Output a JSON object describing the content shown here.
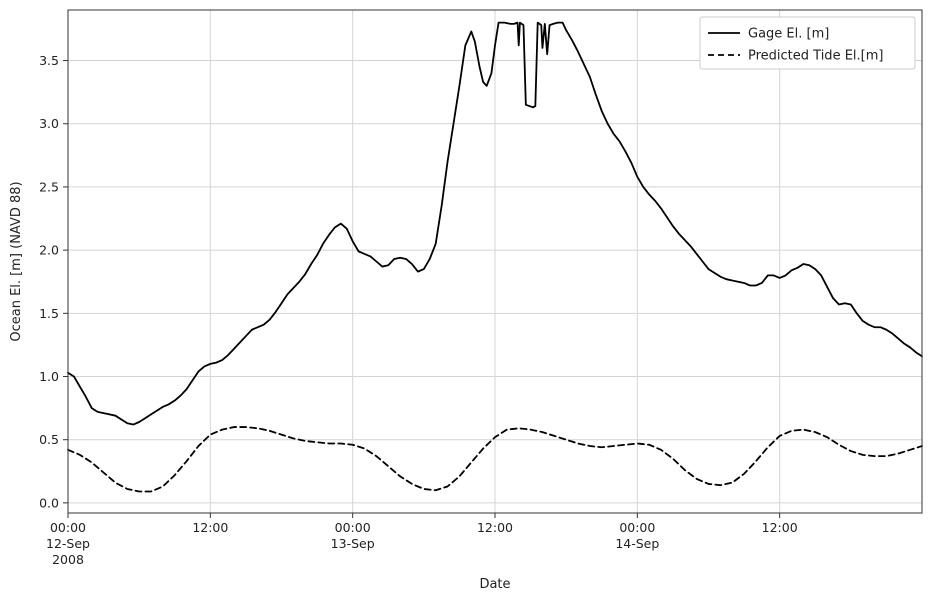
{
  "chart_data": {
    "type": "line",
    "title": "",
    "xlabel": "Date",
    "ylabel": "Ocean El. [m] (NAVD 88)",
    "x_unit": "hours from 2008-09-12 00:00",
    "xlim": [
      0,
      72
    ],
    "ylim": [
      -0.08,
      3.9
    ],
    "grid": true,
    "legend_position": "top-right",
    "x_ticks": [
      {
        "x": 0,
        "line1": "00:00",
        "line2": "12-Sep",
        "line3": "2008"
      },
      {
        "x": 12,
        "line1": "12:00",
        "line2": "",
        "line3": ""
      },
      {
        "x": 24,
        "line1": "00:00",
        "line2": "13-Sep",
        "line3": ""
      },
      {
        "x": 36,
        "line1": "12:00",
        "line2": "",
        "line3": ""
      },
      {
        "x": 48,
        "line1": "00:00",
        "line2": "14-Sep",
        "line3": ""
      },
      {
        "x": 60,
        "line1": "12:00",
        "line2": "",
        "line3": ""
      }
    ],
    "y_ticks": [
      {
        "y": 0.0,
        "label": "0.0"
      },
      {
        "y": 0.5,
        "label": "0.5"
      },
      {
        "y": 1.0,
        "label": "1.0"
      },
      {
        "y": 1.5,
        "label": "1.5"
      },
      {
        "y": 2.0,
        "label": "2.0"
      },
      {
        "y": 2.5,
        "label": "2.5"
      },
      {
        "y": 3.0,
        "label": "3.0"
      },
      {
        "y": 3.5,
        "label": "3.5"
      }
    ],
    "series": [
      {
        "name": "Gage El. [m]",
        "style": "solid",
        "color": "#000000",
        "points": [
          [
            0,
            1.03
          ],
          [
            0.5,
            1.0
          ],
          [
            1,
            0.92
          ],
          [
            1.5,
            0.84
          ],
          [
            2,
            0.75
          ],
          [
            2.5,
            0.72
          ],
          [
            3,
            0.71
          ],
          [
            3.5,
            0.7
          ],
          [
            4,
            0.69
          ],
          [
            4.5,
            0.66
          ],
          [
            5,
            0.63
          ],
          [
            5.5,
            0.62
          ],
          [
            6,
            0.64
          ],
          [
            6.5,
            0.67
          ],
          [
            7,
            0.7
          ],
          [
            7.5,
            0.73
          ],
          [
            8,
            0.76
          ],
          [
            8.5,
            0.78
          ],
          [
            9,
            0.81
          ],
          [
            9.5,
            0.85
          ],
          [
            10,
            0.9
          ],
          [
            10.5,
            0.97
          ],
          [
            11,
            1.04
          ],
          [
            11.5,
            1.08
          ],
          [
            12,
            1.1
          ],
          [
            12.5,
            1.11
          ],
          [
            13,
            1.13
          ],
          [
            13.5,
            1.17
          ],
          [
            14,
            1.22
          ],
          [
            14.5,
            1.27
          ],
          [
            15,
            1.32
          ],
          [
            15.5,
            1.37
          ],
          [
            16,
            1.39
          ],
          [
            16.5,
            1.41
          ],
          [
            17,
            1.45
          ],
          [
            17.5,
            1.51
          ],
          [
            18,
            1.58
          ],
          [
            18.5,
            1.65
          ],
          [
            19,
            1.7
          ],
          [
            19.5,
            1.75
          ],
          [
            20,
            1.81
          ],
          [
            20.5,
            1.89
          ],
          [
            21,
            1.96
          ],
          [
            21.5,
            2.05
          ],
          [
            22,
            2.12
          ],
          [
            22.5,
            2.18
          ],
          [
            23,
            2.21
          ],
          [
            23.5,
            2.17
          ],
          [
            24,
            2.07
          ],
          [
            24.5,
            1.99
          ],
          [
            25,
            1.97
          ],
          [
            25.5,
            1.95
          ],
          [
            26,
            1.91
          ],
          [
            26.5,
            1.87
          ],
          [
            27,
            1.88
          ],
          [
            27.5,
            1.93
          ],
          [
            28,
            1.94
          ],
          [
            28.5,
            1.93
          ],
          [
            29,
            1.89
          ],
          [
            29.5,
            1.83
          ],
          [
            30,
            1.85
          ],
          [
            30.5,
            1.93
          ],
          [
            31,
            2.05
          ],
          [
            31.5,
            2.35
          ],
          [
            32,
            2.7
          ],
          [
            32.5,
            3.0
          ],
          [
            33,
            3.3
          ],
          [
            33.5,
            3.62
          ],
          [
            34,
            3.73
          ],
          [
            34.3,
            3.65
          ],
          [
            34.7,
            3.45
          ],
          [
            35,
            3.33
          ],
          [
            35.3,
            3.3
          ],
          [
            35.7,
            3.4
          ],
          [
            36,
            3.62
          ],
          [
            36.3,
            3.8
          ],
          [
            36.8,
            3.8
          ],
          [
            37.3,
            3.79
          ],
          [
            37.6,
            3.79
          ],
          [
            37.9,
            3.8
          ],
          [
            38.0,
            3.62
          ],
          [
            38.1,
            3.8
          ],
          [
            38.4,
            3.78
          ],
          [
            38.6,
            3.15
          ],
          [
            39.2,
            3.13
          ],
          [
            39.4,
            3.14
          ],
          [
            39.6,
            3.8
          ],
          [
            39.9,
            3.78
          ],
          [
            40.0,
            3.6
          ],
          [
            40.2,
            3.79
          ],
          [
            40.4,
            3.55
          ],
          [
            40.6,
            3.78
          ],
          [
            40.9,
            3.79
          ],
          [
            41.3,
            3.8
          ],
          [
            41.7,
            3.8
          ],
          [
            42,
            3.74
          ],
          [
            42.5,
            3.66
          ],
          [
            43,
            3.57
          ],
          [
            43.5,
            3.47
          ],
          [
            44,
            3.37
          ],
          [
            44.5,
            3.23
          ],
          [
            45,
            3.1
          ],
          [
            45.5,
            3.0
          ],
          [
            46,
            2.92
          ],
          [
            46.5,
            2.86
          ],
          [
            47,
            2.78
          ],
          [
            47.5,
            2.69
          ],
          [
            48,
            2.58
          ],
          [
            48.5,
            2.5
          ],
          [
            49,
            2.44
          ],
          [
            49.5,
            2.39
          ],
          [
            50,
            2.33
          ],
          [
            50.5,
            2.26
          ],
          [
            51,
            2.19
          ],
          [
            51.5,
            2.13
          ],
          [
            52,
            2.08
          ],
          [
            52.5,
            2.03
          ],
          [
            53,
            1.97
          ],
          [
            53.5,
            1.91
          ],
          [
            54,
            1.85
          ],
          [
            54.5,
            1.82
          ],
          [
            55,
            1.79
          ],
          [
            55.5,
            1.77
          ],
          [
            56,
            1.76
          ],
          [
            56.5,
            1.75
          ],
          [
            57,
            1.74
          ],
          [
            57.5,
            1.72
          ],
          [
            58,
            1.72
          ],
          [
            58.5,
            1.74
          ],
          [
            59,
            1.8
          ],
          [
            59.5,
            1.8
          ],
          [
            60,
            1.78
          ],
          [
            60.5,
            1.8
          ],
          [
            61,
            1.84
          ],
          [
            61.5,
            1.86
          ],
          [
            62,
            1.89
          ],
          [
            62.5,
            1.88
          ],
          [
            63,
            1.85
          ],
          [
            63.5,
            1.8
          ],
          [
            64,
            1.71
          ],
          [
            64.5,
            1.62
          ],
          [
            65,
            1.57
          ],
          [
            65.5,
            1.58
          ],
          [
            66,
            1.57
          ],
          [
            66.5,
            1.5
          ],
          [
            67,
            1.44
          ],
          [
            67.5,
            1.41
          ],
          [
            68,
            1.39
          ],
          [
            68.5,
            1.39
          ],
          [
            69,
            1.37
          ],
          [
            69.5,
            1.34
          ],
          [
            70,
            1.3
          ],
          [
            70.5,
            1.26
          ],
          [
            71,
            1.23
          ],
          [
            71.5,
            1.19
          ],
          [
            72,
            1.16
          ]
        ]
      },
      {
        "name": "Predicted Tide El.[m]",
        "style": "dashed",
        "color": "#000000",
        "points": [
          [
            0,
            0.42
          ],
          [
            1,
            0.38
          ],
          [
            2,
            0.32
          ],
          [
            3,
            0.24
          ],
          [
            4,
            0.16
          ],
          [
            5,
            0.11
          ],
          [
            6,
            0.09
          ],
          [
            7,
            0.09
          ],
          [
            8,
            0.13
          ],
          [
            9,
            0.22
          ],
          [
            10,
            0.33
          ],
          [
            11,
            0.45
          ],
          [
            12,
            0.54
          ],
          [
            13,
            0.58
          ],
          [
            14,
            0.6
          ],
          [
            15,
            0.6
          ],
          [
            16,
            0.59
          ],
          [
            17,
            0.57
          ],
          [
            18,
            0.54
          ],
          [
            19,
            0.51
          ],
          [
            20,
            0.49
          ],
          [
            21,
            0.48
          ],
          [
            22,
            0.47
          ],
          [
            23,
            0.47
          ],
          [
            24,
            0.46
          ],
          [
            25,
            0.43
          ],
          [
            26,
            0.37
          ],
          [
            27,
            0.29
          ],
          [
            28,
            0.21
          ],
          [
            29,
            0.15
          ],
          [
            30,
            0.11
          ],
          [
            31,
            0.1
          ],
          [
            32,
            0.13
          ],
          [
            33,
            0.21
          ],
          [
            34,
            0.32
          ],
          [
            35,
            0.43
          ],
          [
            36,
            0.52
          ],
          [
            37,
            0.58
          ],
          [
            38,
            0.59
          ],
          [
            39,
            0.58
          ],
          [
            40,
            0.56
          ],
          [
            41,
            0.53
          ],
          [
            42,
            0.5
          ],
          [
            43,
            0.47
          ],
          [
            44,
            0.45
          ],
          [
            45,
            0.44
          ],
          [
            46,
            0.45
          ],
          [
            47,
            0.46
          ],
          [
            48,
            0.47
          ],
          [
            49,
            0.46
          ],
          [
            50,
            0.42
          ],
          [
            51,
            0.35
          ],
          [
            52,
            0.26
          ],
          [
            53,
            0.19
          ],
          [
            54,
            0.15
          ],
          [
            55,
            0.14
          ],
          [
            56,
            0.16
          ],
          [
            57,
            0.23
          ],
          [
            58,
            0.33
          ],
          [
            59,
            0.44
          ],
          [
            60,
            0.53
          ],
          [
            61,
            0.57
          ],
          [
            62,
            0.58
          ],
          [
            63,
            0.56
          ],
          [
            64,
            0.52
          ],
          [
            65,
            0.46
          ],
          [
            66,
            0.41
          ],
          [
            67,
            0.38
          ],
          [
            68,
            0.37
          ],
          [
            69,
            0.37
          ],
          [
            70,
            0.39
          ],
          [
            71,
            0.42
          ],
          [
            72,
            0.45
          ]
        ]
      }
    ]
  }
}
